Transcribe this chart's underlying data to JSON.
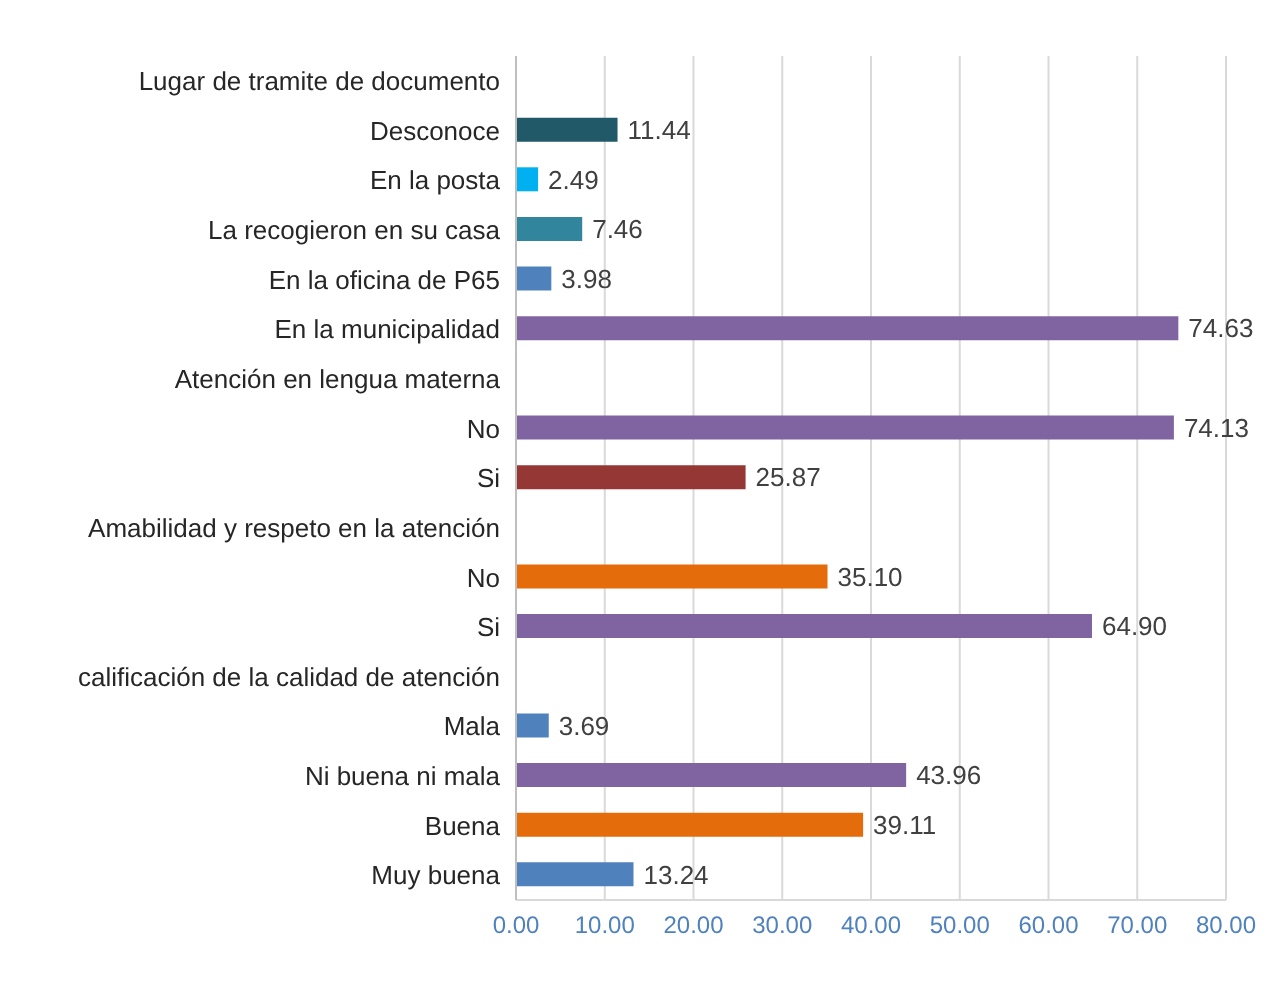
{
  "chart_data": {
    "type": "bar",
    "orientation": "horizontal",
    "categories": [
      "Lugar de tramite de documento",
      "Desconoce",
      "En la posta",
      "La recogieron en su casa",
      "En la oficina de P65",
      "En la municipalidad",
      "Atención en lengua materna",
      "No",
      "Si",
      "Amabilidad y respeto en la atención",
      "No",
      "Si",
      "calificación de la calidad de atención",
      "Mala",
      "Ni buena ni mala",
      "Buena",
      "Muy buena"
    ],
    "values": [
      null,
      11.44,
      2.49,
      7.46,
      3.98,
      74.63,
      null,
      74.13,
      25.87,
      null,
      35.1,
      64.9,
      null,
      3.69,
      43.96,
      39.11,
      13.24
    ],
    "value_labels": [
      null,
      "11.44",
      "2.49",
      "7.46",
      "3.98",
      "74.63",
      null,
      "74.13",
      "25.87",
      null,
      "35.10",
      "64.90",
      null,
      "3.69",
      "43.96",
      "39.11",
      "13.24"
    ],
    "colors": [
      "#8064a2",
      "#215968",
      "#00b0f0",
      "#31859c",
      "#4f81bd",
      "#8064a2",
      "#8064a2",
      "#8064a2",
      "#953735",
      "#8064a2",
      "#e46c0a",
      "#8064a2",
      "#8064a2",
      "#4f81bd",
      "#8064a2",
      "#e46c0a",
      "#4f81bd"
    ],
    "xlim": [
      0,
      80
    ],
    "xticks": [
      {
        "value": 0,
        "label": "0.00"
      },
      {
        "value": 10,
        "label": "10.00"
      },
      {
        "value": 20,
        "label": "20.00"
      },
      {
        "value": 30,
        "label": "30.00"
      },
      {
        "value": 40,
        "label": "40.00"
      },
      {
        "value": 50,
        "label": "50.00"
      },
      {
        "value": 60,
        "label": "60.00"
      },
      {
        "value": 70,
        "label": "70.00"
      },
      {
        "value": 80,
        "label": "80.00"
      }
    ],
    "grid": "x"
  }
}
